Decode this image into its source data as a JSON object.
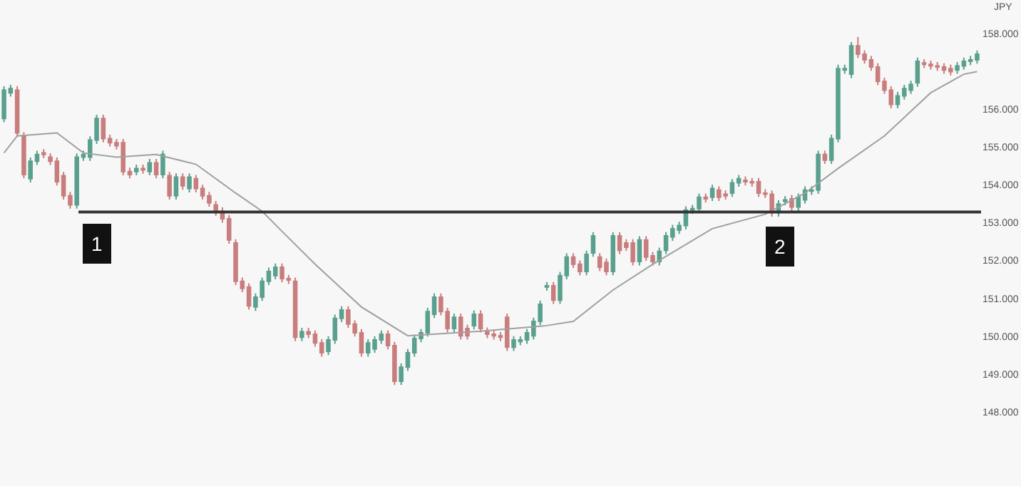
{
  "chart_data": {
    "type": "candlestick",
    "ylabel": "JPY",
    "categories": [
      null,
      null,
      null,
      null,
      null,
      null,
      null,
      null,
      null,
      null,
      null,
      null,
      null,
      null,
      null,
      null,
      null,
      null,
      null,
      null,
      null,
      null,
      null,
      null,
      null,
      null,
      null,
      null,
      null,
      null,
      null,
      null,
      null,
      null,
      null,
      null,
      null,
      null,
      null,
      null,
      null,
      null,
      null,
      null,
      null,
      null,
      null,
      null,
      null,
      null,
      null,
      null,
      null,
      null,
      null,
      null,
      null,
      null,
      null,
      null,
      null,
      null,
      null,
      null,
      null,
      null,
      null,
      null,
      null,
      null,
      null,
      null,
      null,
      null,
      null,
      null,
      null,
      null,
      null,
      null,
      null,
      null,
      null,
      null,
      null,
      null,
      null,
      null,
      null,
      null,
      null,
      null,
      null,
      null,
      null,
      null,
      null,
      null,
      null,
      null,
      null,
      null,
      null,
      null,
      null,
      null,
      null,
      null,
      null,
      null,
      null,
      null,
      null,
      null,
      null,
      null,
      null,
      null,
      null,
      null,
      null,
      null,
      null,
      null,
      null,
      null,
      null,
      null,
      null,
      null,
      null,
      null,
      null,
      null,
      null,
      null,
      null,
      null,
      null,
      null,
      null,
      null,
      null,
      null,
      null,
      null,
      null,
      null
    ],
    "ohlc": [
      [
        155.75,
        156.6,
        155.65,
        156.5
      ],
      [
        156.43,
        156.64,
        156.33,
        156.54
      ],
      [
        156.5,
        156.6,
        155.27,
        155.37
      ],
      [
        155.29,
        155.39,
        154.17,
        154.27
      ],
      [
        154.16,
        154.72,
        154.06,
        154.62
      ],
      [
        154.62,
        154.9,
        154.52,
        154.8
      ],
      [
        154.84,
        154.94,
        154.7,
        154.8
      ],
      [
        154.73,
        154.83,
        154.52,
        154.62
      ],
      [
        154.62,
        154.72,
        153.98,
        154.08
      ],
      [
        154.24,
        154.34,
        153.61,
        153.71
      ],
      [
        153.71,
        153.81,
        153.37,
        153.47
      ],
      [
        153.47,
        154.83,
        153.37,
        154.73
      ],
      [
        154.73,
        154.9,
        154.63,
        154.8
      ],
      [
        154.73,
        155.28,
        154.63,
        155.18
      ],
      [
        155.18,
        155.85,
        155.08,
        155.75
      ],
      [
        155.75,
        155.85,
        155.12,
        155.22
      ],
      [
        155.22,
        155.32,
        155.01,
        155.11
      ],
      [
        155.11,
        155.21,
        154.93,
        155.03
      ],
      [
        155.11,
        155.21,
        154.25,
        154.35
      ],
      [
        154.35,
        154.45,
        154.17,
        154.27
      ],
      [
        154.35,
        154.53,
        154.25,
        154.43
      ],
      [
        154.43,
        154.53,
        154.29,
        154.39
      ],
      [
        154.35,
        154.68,
        154.25,
        154.58
      ],
      [
        154.58,
        154.68,
        154.17,
        154.27
      ],
      [
        154.27,
        154.9,
        154.17,
        154.8
      ],
      [
        154.24,
        154.34,
        153.61,
        153.71
      ],
      [
        153.71,
        154.3,
        153.61,
        154.2
      ],
      [
        154.2,
        154.3,
        153.87,
        153.97
      ],
      [
        153.9,
        154.3,
        153.8,
        154.2
      ],
      [
        154.16,
        154.26,
        153.8,
        153.9
      ],
      [
        153.9,
        154.0,
        153.61,
        153.71
      ],
      [
        153.71,
        153.81,
        153.42,
        153.52
      ],
      [
        153.47,
        153.57,
        153.18,
        153.28
      ],
      [
        153.3,
        153.4,
        153.0,
        153.1
      ],
      [
        153.1,
        153.2,
        152.44,
        152.54
      ],
      [
        152.46,
        152.56,
        151.35,
        151.45
      ],
      [
        151.45,
        151.55,
        151.16,
        151.26
      ],
      [
        151.3,
        151.4,
        150.7,
        150.8
      ],
      [
        150.77,
        151.13,
        150.67,
        151.03
      ],
      [
        151.03,
        151.55,
        150.93,
        151.45
      ],
      [
        151.45,
        151.81,
        151.35,
        151.71
      ],
      [
        151.6,
        151.92,
        151.5,
        151.82
      ],
      [
        151.82,
        151.92,
        151.42,
        151.52
      ],
      [
        151.52,
        151.62,
        151.38,
        151.48
      ],
      [
        151.45,
        151.55,
        149.87,
        149.97
      ],
      [
        149.97,
        150.22,
        149.87,
        150.12
      ],
      [
        150.12,
        150.22,
        149.95,
        150.05
      ],
      [
        150.05,
        150.15,
        149.72,
        149.82
      ],
      [
        149.82,
        149.92,
        149.46,
        149.56
      ],
      [
        149.6,
        150.0,
        149.5,
        149.9
      ],
      [
        149.9,
        150.57,
        149.8,
        150.47
      ],
      [
        150.47,
        150.79,
        150.37,
        150.69
      ],
      [
        150.69,
        150.79,
        150.22,
        150.32
      ],
      [
        150.32,
        150.42,
        149.99,
        150.09
      ],
      [
        150.09,
        150.19,
        149.46,
        149.56
      ],
      [
        149.56,
        149.92,
        149.46,
        149.82
      ],
      [
        149.66,
        150.0,
        149.56,
        149.9
      ],
      [
        149.9,
        150.15,
        149.8,
        150.05
      ],
      [
        150.05,
        150.15,
        149.65,
        149.75
      ],
      [
        149.75,
        149.85,
        148.71,
        148.81
      ],
      [
        148.81,
        149.28,
        148.71,
        149.18
      ],
      [
        149.18,
        149.66,
        149.08,
        149.56
      ],
      [
        149.56,
        150.04,
        149.46,
        149.94
      ],
      [
        149.94,
        150.19,
        149.84,
        150.09
      ],
      [
        150.09,
        150.75,
        149.99,
        150.65
      ],
      [
        150.58,
        151.13,
        150.48,
        151.03
      ],
      [
        151.03,
        151.13,
        150.55,
        150.65
      ],
      [
        150.65,
        150.75,
        150.1,
        150.2
      ],
      [
        150.2,
        150.6,
        150.1,
        150.5
      ],
      [
        150.5,
        150.6,
        149.91,
        150.01
      ],
      [
        150.2,
        150.3,
        149.91,
        150.01
      ],
      [
        150.28,
        150.68,
        150.18,
        150.58
      ],
      [
        150.58,
        150.68,
        150.1,
        150.2
      ],
      [
        150.13,
        150.23,
        149.95,
        150.05
      ],
      [
        150.05,
        150.15,
        149.91,
        150.01
      ],
      [
        150.01,
        150.11,
        149.87,
        149.97
      ],
      [
        150.5,
        150.6,
        149.61,
        149.71
      ],
      [
        149.71,
        150.0,
        149.61,
        149.9
      ],
      [
        149.86,
        150.0,
        149.76,
        149.9
      ],
      [
        149.9,
        150.19,
        149.8,
        150.09
      ],
      [
        150.01,
        150.49,
        149.91,
        150.39
      ],
      [
        150.39,
        150.94,
        150.29,
        150.84
      ],
      [
        151.3,
        151.43,
        151.2,
        151.33
      ],
      [
        151.33,
        151.43,
        150.85,
        150.95
      ],
      [
        150.95,
        151.7,
        150.85,
        151.6
      ],
      [
        151.6,
        152.19,
        151.5,
        152.09
      ],
      [
        152.09,
        152.19,
        151.8,
        151.9
      ],
      [
        151.9,
        152.0,
        151.61,
        151.71
      ],
      [
        151.71,
        152.26,
        151.61,
        152.16
      ],
      [
        152.2,
        152.75,
        152.1,
        152.65
      ],
      [
        152.09,
        152.19,
        151.72,
        151.82
      ],
      [
        151.95,
        152.05,
        151.61,
        151.71
      ],
      [
        151.71,
        152.75,
        151.61,
        152.65
      ],
      [
        152.65,
        152.75,
        152.17,
        152.27
      ],
      [
        152.46,
        152.56,
        152.25,
        152.35
      ],
      [
        152.46,
        152.56,
        151.87,
        151.97
      ],
      [
        151.97,
        152.64,
        151.87,
        152.54
      ],
      [
        152.54,
        152.64,
        151.99,
        152.09
      ],
      [
        152.12,
        152.22,
        151.87,
        151.97
      ],
      [
        151.97,
        152.34,
        151.87,
        152.24
      ],
      [
        152.27,
        152.75,
        152.17,
        152.65
      ],
      [
        152.62,
        152.94,
        152.52,
        152.84
      ],
      [
        152.8,
        153.02,
        152.7,
        152.92
      ],
      [
        152.92,
        153.43,
        152.82,
        153.33
      ],
      [
        153.33,
        153.47,
        153.23,
        153.37
      ],
      [
        153.37,
        153.77,
        153.27,
        153.67
      ],
      [
        153.67,
        153.77,
        153.53,
        153.63
      ],
      [
        153.67,
        154.0,
        153.57,
        153.9
      ],
      [
        153.86,
        153.96,
        153.57,
        153.67
      ],
      [
        153.75,
        153.85,
        153.61,
        153.71
      ],
      [
        153.78,
        154.15,
        153.68,
        154.05
      ],
      [
        154.05,
        154.26,
        153.95,
        154.16
      ],
      [
        154.12,
        154.22,
        153.98,
        154.08
      ],
      [
        154.08,
        154.18,
        153.95,
        154.05
      ],
      [
        154.08,
        154.18,
        153.68,
        153.78
      ],
      [
        153.78,
        153.88,
        153.65,
        153.75
      ],
      [
        153.75,
        153.85,
        153.16,
        153.26
      ],
      [
        153.26,
        153.59,
        153.16,
        153.49
      ],
      [
        153.56,
        153.7,
        153.46,
        153.6
      ],
      [
        153.63,
        153.73,
        153.31,
        153.41
      ],
      [
        153.41,
        153.77,
        153.31,
        153.67
      ],
      [
        153.6,
        153.96,
        153.5,
        153.86
      ],
      [
        153.83,
        153.96,
        153.73,
        153.86
      ],
      [
        153.86,
        154.9,
        153.76,
        154.8
      ],
      [
        154.8,
        154.9,
        154.55,
        154.65
      ],
      [
        154.65,
        155.32,
        154.55,
        155.22
      ],
      [
        155.22,
        157.17,
        155.12,
        157.07
      ],
      [
        157.03,
        157.17,
        156.93,
        157.07
      ],
      [
        156.92,
        157.77,
        156.82,
        157.67
      ],
      [
        157.67,
        157.9,
        157.35,
        157.45
      ],
      [
        157.45,
        157.55,
        157.2,
        157.3
      ],
      [
        157.3,
        157.4,
        157.01,
        157.11
      ],
      [
        157.11,
        157.21,
        156.63,
        156.73
      ],
      [
        156.73,
        156.83,
        156.4,
        156.5
      ],
      [
        156.5,
        156.6,
        156.02,
        156.12
      ],
      [
        156.12,
        156.45,
        156.02,
        156.35
      ],
      [
        156.35,
        156.64,
        156.25,
        156.54
      ],
      [
        156.5,
        156.75,
        156.4,
        156.65
      ],
      [
        156.69,
        157.36,
        156.59,
        157.26
      ],
      [
        157.22,
        157.32,
        157.08,
        157.18
      ],
      [
        157.18,
        157.28,
        157.04,
        157.14
      ],
      [
        157.14,
        157.24,
        157.01,
        157.11
      ],
      [
        157.11,
        157.21,
        156.93,
        157.03
      ],
      [
        157.07,
        157.17,
        156.89,
        156.99
      ],
      [
        157.03,
        157.24,
        156.93,
        157.14
      ],
      [
        157.14,
        157.36,
        157.04,
        157.26
      ],
      [
        157.26,
        157.4,
        157.16,
        157.3
      ],
      [
        157.3,
        157.55,
        157.2,
        157.45
      ]
    ],
    "colors": [
      "#5aa08e",
      "#5aa08e",
      "#c97d7d",
      "#c97d7d",
      "#5aa08e",
      "#5aa08e",
      "#c97d7d",
      "#c97d7d",
      "#c97d7d",
      "#c97d7d",
      "#c97d7d",
      "#5aa08e",
      "#5aa08e",
      "#5aa08e",
      "#5aa08e",
      "#c97d7d",
      "#c97d7d",
      "#c97d7d",
      "#c97d7d",
      "#c97d7d",
      "#5aa08e",
      "#c97d7d",
      "#5aa08e",
      "#c97d7d",
      "#5aa08e",
      "#c97d7d",
      "#5aa08e",
      "#c97d7d",
      "#5aa08e",
      "#c97d7d",
      "#c97d7d",
      "#c97d7d",
      "#c97d7d",
      "#c97d7d",
      "#c97d7d",
      "#c97d7d",
      "#c97d7d",
      "#c97d7d",
      "#5aa08e",
      "#5aa08e",
      "#5aa08e",
      "#5aa08e",
      "#c97d7d",
      "#c97d7d",
      "#c97d7d",
      "#5aa08e",
      "#c97d7d",
      "#c97d7d",
      "#c97d7d",
      "#5aa08e",
      "#5aa08e",
      "#5aa08e",
      "#c97d7d",
      "#c97d7d",
      "#c97d7d",
      "#5aa08e",
      "#5aa08e",
      "#5aa08e",
      "#c97d7d",
      "#c97d7d",
      "#5aa08e",
      "#5aa08e",
      "#5aa08e",
      "#5aa08e",
      "#5aa08e",
      "#5aa08e",
      "#c97d7d",
      "#c97d7d",
      "#5aa08e",
      "#c97d7d",
      "#c97d7d",
      "#5aa08e",
      "#c97d7d",
      "#c97d7d",
      "#c97d7d",
      "#c97d7d",
      "#c97d7d",
      "#5aa08e",
      "#5aa08e",
      "#5aa08e",
      "#5aa08e",
      "#5aa08e",
      "#5aa08e",
      "#c97d7d",
      "#5aa08e",
      "#5aa08e",
      "#c97d7d",
      "#c97d7d",
      "#5aa08e",
      "#5aa08e",
      "#c97d7d",
      "#c97d7d",
      "#5aa08e",
      "#c97d7d",
      "#c97d7d",
      "#c97d7d",
      "#5aa08e",
      "#c97d7d",
      "#c97d7d",
      "#5aa08e",
      "#5aa08e",
      "#5aa08e",
      "#5aa08e",
      "#5aa08e",
      "#5aa08e",
      "#5aa08e",
      "#c97d7d",
      "#5aa08e",
      "#c97d7d",
      "#c97d7d",
      "#5aa08e",
      "#5aa08e",
      "#c97d7d",
      "#c97d7d",
      "#c97d7d",
      "#c97d7d",
      "#c97d7d",
      "#5aa08e",
      "#5aa08e",
      "#c97d7d",
      "#5aa08e",
      "#5aa08e",
      "#5aa08e",
      "#5aa08e",
      "#c97d7d",
      "#5aa08e",
      "#5aa08e",
      "#5aa08e",
      "#5aa08e",
      "#c97d7d",
      "#c97d7d",
      "#c97d7d",
      "#c97d7d",
      "#c97d7d",
      "#c97d7d",
      "#5aa08e",
      "#5aa08e",
      "#5aa08e",
      "#5aa08e",
      "#c97d7d",
      "#c97d7d",
      "#c97d7d",
      "#c97d7d",
      "#c97d7d",
      "#5aa08e",
      "#5aa08e",
      "#5aa08e",
      "#5aa08e"
    ],
    "series": [
      {
        "type": "line",
        "color": "#a0a0a0",
        "values": [
          154.84,
          null,
          155.29,
          null,
          null,
          null,
          null,
          null,
          155.37,
          null,
          null,
          null,
          154.84,
          null,
          null,
          null,
          null,
          154.73,
          null,
          null,
          null,
          null,
          null,
          154.8,
          null,
          null,
          null,
          null,
          null,
          154.54,
          null,
          null,
          null,
          null,
          null,
          153.78,
          null,
          null,
          null,
          153.3,
          null,
          null,
          152.77,
          null,
          null,
          null,
          null,
          151.9,
          null,
          null,
          null,
          null,
          null,
          null,
          150.77,
          null,
          null,
          null,
          null,
          null,
          null,
          150.01,
          null,
          null,
          null,
          null,
          null,
          null,
          null,
          null,
          null,
          null,
          150.13,
          null,
          null,
          null,
          null,
          null,
          null,
          null,
          null,
          null,
          150.28,
          null,
          null,
          null,
          150.39,
          null,
          null,
          null,
          null,
          null,
          151.22,
          null,
          null,
          null,
          null,
          null,
          151.9,
          null,
          null,
          null,
          null,
          null,
          null,
          null,
          null,
          152.84,
          null,
          null,
          null,
          null,
          null,
          null,
          null,
          153.22,
          null,
          null,
          null,
          null,
          null,
          153.78,
          null,
          null,
          null,
          null,
          154.43,
          null,
          null,
          null,
          null,
          null,
          null,
          155.29,
          null,
          null,
          null,
          null,
          null,
          null,
          156.43,
          null,
          null,
          null,
          null,
          156.92,
          null,
          156.99
        ]
      }
    ],
    "ref_lines": [
      {
        "axis": "y",
        "value": 153.28,
        "color": "#333333"
      }
    ],
    "annotations": [
      "1",
      "2"
    ],
    "ylim": [
      148,
      158.88
    ],
    "yticks": [
      {
        "value": 148,
        "label": "148.000"
      },
      {
        "value": 149,
        "label": "149.000"
      },
      {
        "value": 150,
        "label": "150.000"
      },
      {
        "value": 151,
        "label": "151.000"
      },
      {
        "value": 152,
        "label": "152.000"
      },
      {
        "value": 153,
        "label": "153.000"
      },
      {
        "value": 154,
        "label": "154.000"
      },
      {
        "value": 155,
        "label": "155.000"
      },
      {
        "value": 156,
        "label": "156.000"
      },
      {
        "value": 158,
        "label": "158.000"
      }
    ],
    "tick_labels": "y"
  }
}
